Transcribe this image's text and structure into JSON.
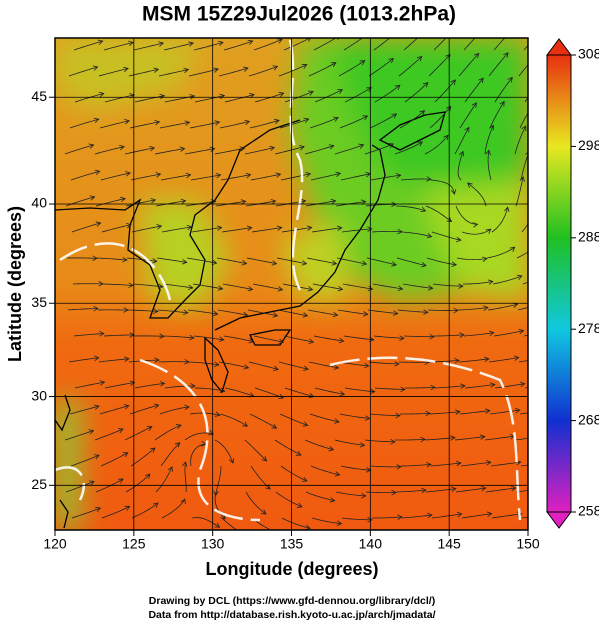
{
  "chart_data": {
    "type": "map",
    "title": "MSM 15Z29Jul2026 (1013.2hPa)",
    "xlabel": "Longitude (degrees)",
    "ylabel": "Latitude  (degrees)",
    "projection": "mercator",
    "xlim": [
      120,
      150
    ],
    "ylim": [
      22.4,
      47.6
    ],
    "xticks": [
      120,
      125,
      130,
      135,
      140,
      145,
      150
    ],
    "yticks": [
      25,
      30,
      35,
      40,
      45
    ],
    "grid": true,
    "colorbar": {
      "lim": [
        258,
        308
      ],
      "ticks": [
        258,
        268,
        278,
        288,
        298,
        308
      ],
      "colors": [
        "#e020c0",
        "#1030d0",
        "#10c8e0",
        "#20c020",
        "#e8e820",
        "#e83010"
      ]
    },
    "credits": [
      "Drawing by DCL (https://www.gfd-dennou.org/library/dcl/)",
      "Data from http://database.rish.kyoto-u.ac.jp/arch/jmadata/"
    ]
  }
}
